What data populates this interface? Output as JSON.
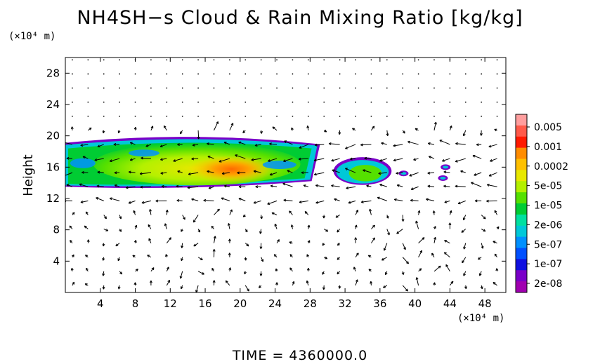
{
  "title": "NH4SH−s Cloud & Rain Mixing Ratio [kg/kg]",
  "y_unit": "(×10⁴ m)",
  "x_unit": "(×10⁴ m)",
  "time_label": "TIME = 4360000.0",
  "chart_data": {
    "type": "heatmap",
    "title": "NH4SH−s Cloud & Rain Mixing Ratio [kg/kg]",
    "xlabel": "",
    "ylabel": "Height",
    "xlim": [
      0,
      50.4
    ],
    "ylim": [
      0,
      30
    ],
    "xticks": [
      4,
      8,
      12,
      16,
      20,
      24,
      28,
      32,
      36,
      40,
      44,
      48
    ],
    "yticks": [
      4,
      8,
      12,
      16,
      20,
      24,
      28
    ],
    "x_tick_labels": [
      "4",
      "8",
      "12",
      "16",
      "20",
      "24",
      "28",
      "32",
      "36",
      "40",
      "44",
      "48"
    ],
    "y_tick_labels": [
      "4",
      "8",
      "12",
      "16",
      "20",
      "24",
      "28"
    ],
    "colorbar": {
      "labels": [
        "0.005",
        "0.001",
        "0.0002",
        "5e-05",
        "1e-05",
        "2e-06",
        "5e-07",
        "1e-07",
        "2e-08"
      ],
      "colors": [
        "#ff9e9e",
        "#ff5a4a",
        "#ff1a00",
        "#ff8c00",
        "#ffc000",
        "#e8e800",
        "#b4f000",
        "#55e000",
        "#00cc33",
        "#00e0a0",
        "#00c8d8",
        "#0090ff",
        "#0050ff",
        "#1010e0",
        "#7a00c8",
        "#a000b0"
      ]
    },
    "cloud_layer": {
      "main_band": {
        "x": [
          0,
          28.5
        ],
        "y": [
          13.5,
          20
        ]
      },
      "secondary_band": {
        "x": [
          31,
          37
        ],
        "y": [
          14,
          17
        ]
      },
      "small_patches": [
        {
          "x": 38.7,
          "y": 15.2
        },
        {
          "x": 43.5,
          "y": 16
        },
        {
          "x": 43.2,
          "y": 14.6
        }
      ],
      "peak_region": {
        "x": [
          14,
          24
        ],
        "y": [
          14,
          17.5
        ]
      }
    },
    "vectors": "wind field arrows over the domain",
    "grid": false
  }
}
